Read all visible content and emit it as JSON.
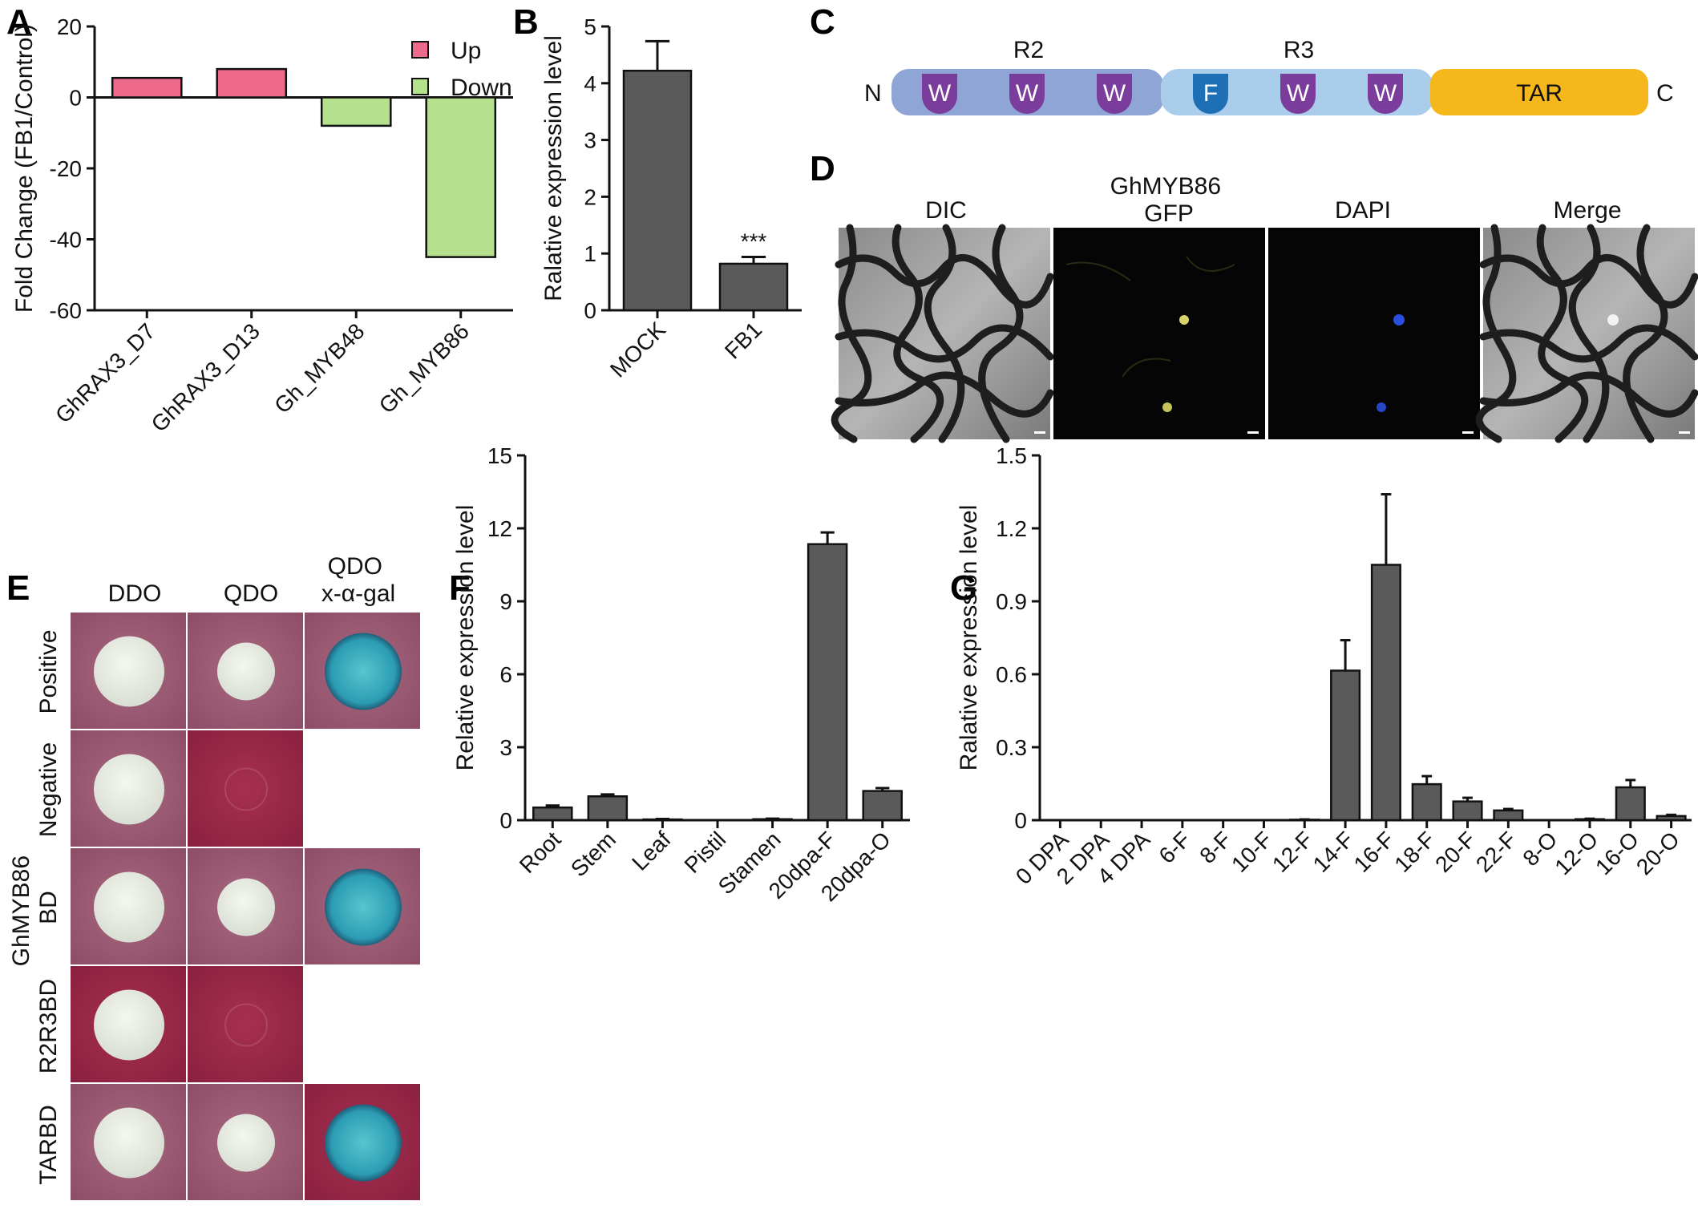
{
  "panel_labels": {
    "A": "A",
    "B": "B",
    "C": "C",
    "D": "D",
    "E": "E",
    "F": "F",
    "G": "G"
  },
  "colors": {
    "up": "#ee6a8b",
    "down": "#b5e08e",
    "bar": "#5a5a5a",
    "domain_n": "#8ea5d6",
    "domain_c": "#aacdec",
    "tar": "#f5b71c",
    "w_motif": "#7b3d9c",
    "f_motif": "#1e6fb3",
    "plate_red": "#9a2a4a",
    "plate_pink": "#9b5a72",
    "colony": "#e9eee6",
    "blue_colony": "#35aab8"
  },
  "chart_data": [
    {
      "panel": "A",
      "type": "bar",
      "categories": [
        "GhRAX3_D7",
        "GhRAX3_D13",
        "Gh_MYB48",
        "Gh_MYB86"
      ],
      "values": [
        5.5,
        8,
        -8,
        -45
      ],
      "series_kind": [
        "Up",
        "Up",
        "Down",
        "Down"
      ],
      "legend": [
        "Up",
        "Down"
      ],
      "legend_position": "top-right",
      "ylabel": "Fold Change (FB1/Control)",
      "yticks": [
        "20",
        "0",
        "-20",
        "-40",
        "-60"
      ],
      "ylim": [
        -60,
        20
      ]
    },
    {
      "panel": "B",
      "type": "bar",
      "categories": [
        "MOCK",
        "FB1"
      ],
      "values": [
        4.22,
        0.82
      ],
      "errors": [
        0.52,
        0.12
      ],
      "annotations": [
        "",
        "***"
      ],
      "ylabel": "Ralative expression level",
      "yticks": [
        "0",
        "1",
        "2",
        "3",
        "4",
        "5"
      ],
      "ylim": [
        0,
        5
      ]
    },
    {
      "panel": "F",
      "type": "bar",
      "categories": [
        "Root",
        "Stem",
        "Leaf",
        "Pistil",
        "Stamen",
        "20dpa-F",
        "20dpa-O"
      ],
      "values": [
        0.52,
        0.98,
        0.03,
        0.0,
        0.04,
        11.35,
        1.2
      ],
      "errors": [
        0.08,
        0.08,
        0.02,
        0.0,
        0.02,
        0.48,
        0.12
      ],
      "ylabel": "Relative expression level",
      "yticks": [
        "0",
        "3",
        "6",
        "9",
        "12",
        "15"
      ],
      "ylim": [
        0,
        15
      ]
    },
    {
      "panel": "G",
      "type": "bar",
      "categories": [
        "0 DPA",
        "2 DPA",
        "4 DPA",
        "6-F",
        "8-F",
        "10-F",
        "12-F",
        "14-F",
        "16-F",
        "18-F",
        "20-F",
        "22-F",
        "8-O",
        "12-O",
        "16-O",
        "20-O"
      ],
      "values": [
        0,
        0,
        0,
        0,
        0,
        0,
        0.002,
        0.615,
        1.05,
        0.148,
        0.077,
        0.04,
        0,
        0.004,
        0.135,
        0.017
      ],
      "errors": [
        0,
        0,
        0,
        0,
        0,
        0,
        0.001,
        0.125,
        0.29,
        0.033,
        0.015,
        0.006,
        0,
        0.002,
        0.03,
        0.005
      ],
      "ylabel": "Ralative expression level",
      "yticks": [
        "0",
        "0.3",
        "0.6",
        "0.9",
        "1.2",
        "1.5"
      ],
      "ylim": [
        0,
        1.5
      ]
    }
  ],
  "panel_c": {
    "n_label": "N",
    "c_label": "C",
    "r2_label": "R2",
    "r3_label": "R3",
    "tar_label": "TAR",
    "r2_motifs": [
      "W",
      "W",
      "W"
    ],
    "r3_motifs": [
      "F",
      "W",
      "W"
    ]
  },
  "panel_d": {
    "headers": [
      "DIC",
      "GhMYB86\nGFP",
      "DAPI",
      "Merge"
    ]
  },
  "panel_e": {
    "columns": [
      "DDO",
      "QDO",
      "QDO\nx-α-gal"
    ],
    "rows": [
      "Positive",
      "Negative",
      "GhMYB86\nBD",
      "R2R3BD",
      "TARBD"
    ],
    "grid": [
      [
        "white",
        "white",
        "blue"
      ],
      [
        "white",
        "none",
        "empty"
      ],
      [
        "white",
        "white",
        "blue"
      ],
      [
        "white",
        "none",
        "empty"
      ],
      [
        "white",
        "white",
        "blue"
      ]
    ]
  }
}
